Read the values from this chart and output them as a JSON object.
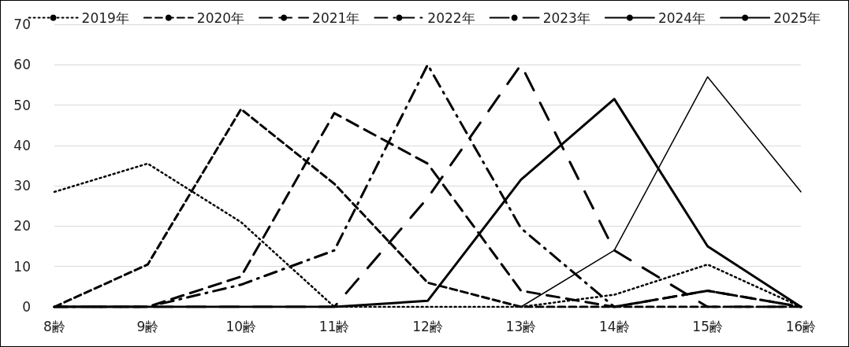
{
  "chart_data": {
    "type": "line",
    "categories": [
      "8齢",
      "9齢",
      "10齢",
      "11齢",
      "12齢",
      "13齢",
      "14齢",
      "15齢",
      "16齢"
    ],
    "series": [
      {
        "name": "2019年",
        "color": "#000000",
        "line_style": "dotted",
        "values": [
          28.5,
          35.5,
          21,
          0,
          0,
          0,
          3,
          10.5,
          0
        ]
      },
      {
        "name": "2020年",
        "color": "#000000",
        "line_style": "dashed",
        "values": [
          0,
          10.5,
          49,
          30.5,
          6,
          0,
          0,
          0,
          0
        ]
      },
      {
        "name": "2021年",
        "color": "#000000",
        "line_style": "dashed",
        "values": [
          0,
          0,
          7.5,
          48,
          35.5,
          4,
          0,
          4,
          0
        ]
      },
      {
        "name": "2022年",
        "color": "#000000",
        "line_style": "dashed",
        "values": [
          0,
          0,
          5.5,
          14,
          60,
          19.5,
          0,
          4,
          0
        ]
      },
      {
        "name": "2023年",
        "color": "#000000",
        "line_style": "dashed",
        "values": [
          0,
          0,
          0,
          0,
          27,
          60,
          14,
          0,
          0
        ]
      },
      {
        "name": "2024年",
        "color": "#000000",
        "line_style": "solid",
        "values": [
          0,
          0,
          0,
          0,
          1.5,
          31.5,
          51.5,
          15,
          0
        ]
      },
      {
        "name": "2025年",
        "color": "#000000",
        "line_style": "solid",
        "values": [
          null,
          null,
          null,
          null,
          null,
          0,
          14,
          57,
          28.5
        ]
      }
    ],
    "ylim": [
      0,
      70
    ],
    "yticks": [
      0,
      10,
      20,
      30,
      40,
      50,
      60,
      70
    ],
    "grid": "y",
    "legend": "top",
    "marker": "none"
  }
}
